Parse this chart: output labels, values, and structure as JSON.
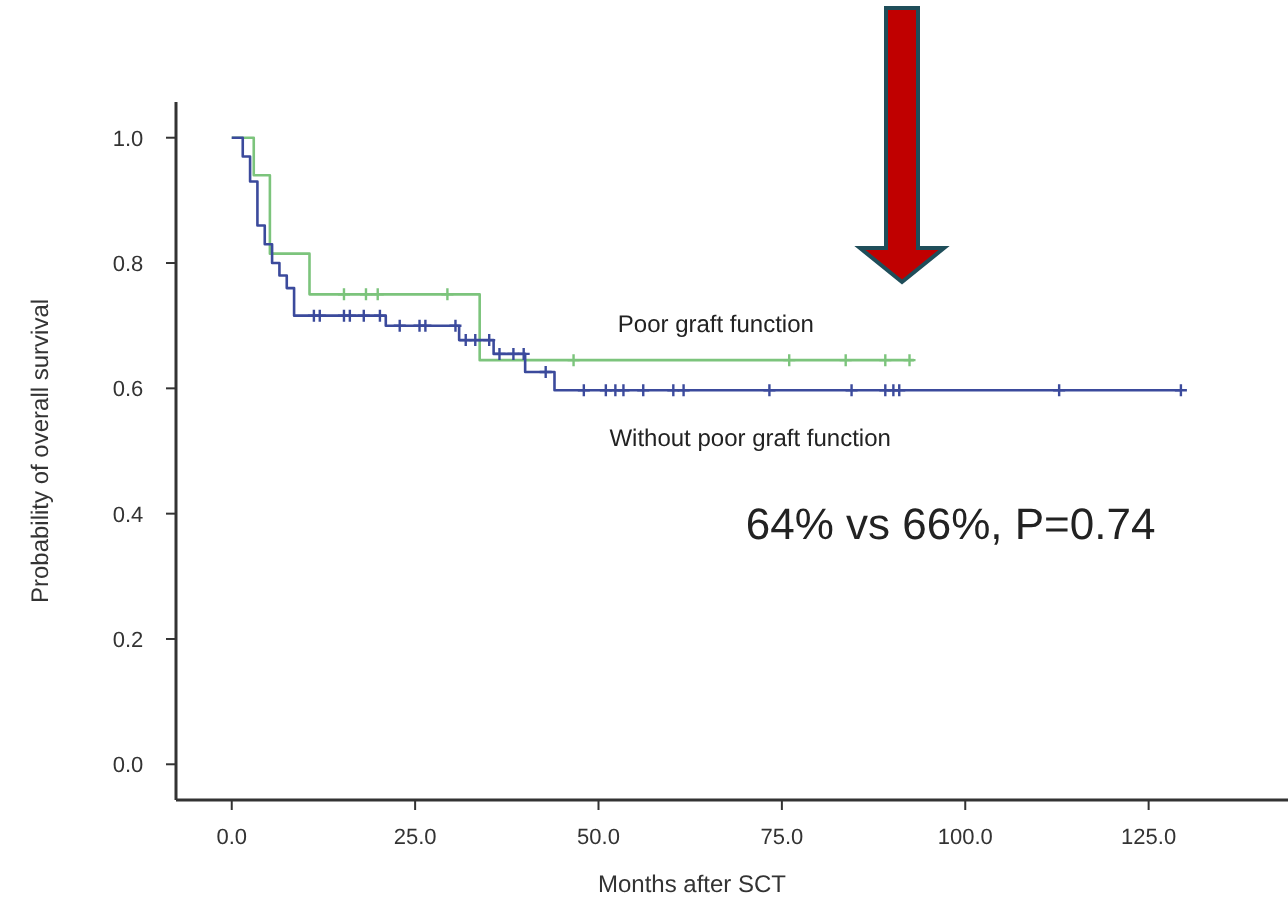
{
  "chart_data": {
    "type": "step",
    "xlabel": "Months after SCT",
    "ylabel": "Probability of overall survival",
    "xlim": [
      -7.6,
      144
    ],
    "ylim": [
      -0.057,
      1.057
    ],
    "xticks": [
      {
        "value": 0,
        "label": "0.0"
      },
      {
        "value": 25,
        "label": "25.0"
      },
      {
        "value": 50,
        "label": "50.0"
      },
      {
        "value": 75,
        "label": "75.0"
      },
      {
        "value": 100,
        "label": "100.0"
      },
      {
        "value": 125,
        "label": "125.0"
      }
    ],
    "yticks": [
      {
        "value": 0,
        "label": "0.0"
      },
      {
        "value": 0.2,
        "label": "0.2"
      },
      {
        "value": 0.4,
        "label": "0.4"
      },
      {
        "value": 0.6,
        "label": "0.6"
      },
      {
        "value": 0.8,
        "label": "0.8"
      },
      {
        "value": 1,
        "label": "1.0"
      }
    ],
    "grid": false,
    "legend": false,
    "marker": "none",
    "line_style": "solid",
    "series": [
      {
        "name": "Poor graft function",
        "color": "#7cc47c",
        "x": [
          0,
          3,
          5.2,
          10.6,
          33.8,
          93
        ],
        "values": [
          1,
          0.94,
          0.815,
          0.75,
          0.645,
          0.645
        ]
      },
      {
        "name": "Without poor graft function",
        "color": "#3b4a9c",
        "x": [
          0,
          1.5,
          2.5,
          3.5,
          4.5,
          5.5,
          6.5,
          7.5,
          8.5,
          21,
          31,
          35.7,
          40,
          44,
          129.4
        ],
        "values": [
          1,
          0.97,
          0.93,
          0.86,
          0.83,
          0.8,
          0.78,
          0.76,
          0.716,
          0.7,
          0.677,
          0.655,
          0.626,
          0.597,
          0.597
        ]
      },
      {
        "type": "scatter",
        "marker": "cross",
        "color": "#7cc47c",
        "x": [
          15.3,
          18.3,
          19.9,
          29.4,
          46.6,
          76,
          83.7,
          89.1,
          92.4
        ],
        "values": [
          0.75,
          0.75,
          0.75,
          0.75,
          0.645,
          0.645,
          0.645,
          0.645,
          0.645
        ]
      },
      {
        "type": "scatter",
        "marker": "cross",
        "color": "#3b4a9c",
        "x": [
          11.2,
          12,
          15.3,
          16.1,
          18,
          20.2,
          22.9,
          25.6,
          26.4,
          30.5,
          31.9,
          33.2,
          35.1,
          36.5,
          38.4,
          39.8,
          42.8,
          48,
          51,
          52.3,
          53.4,
          56.1,
          60.2,
          61.6,
          73.3,
          84.5,
          89.1,
          90.2,
          91,
          112.8,
          129.4
        ],
        "values": [
          0.716,
          0.716,
          0.716,
          0.716,
          0.716,
          0.716,
          0.7,
          0.7,
          0.7,
          0.7,
          0.677,
          0.677,
          0.677,
          0.655,
          0.655,
          0.655,
          0.626,
          0.597,
          0.597,
          0.597,
          0.597,
          0.597,
          0.597,
          0.597,
          0.597,
          0.597,
          0.597,
          0.597,
          0.597,
          0.597,
          0.597
        ]
      }
    ],
    "annotations": [
      "64% vs 66%, P=0.74"
    ]
  }
}
